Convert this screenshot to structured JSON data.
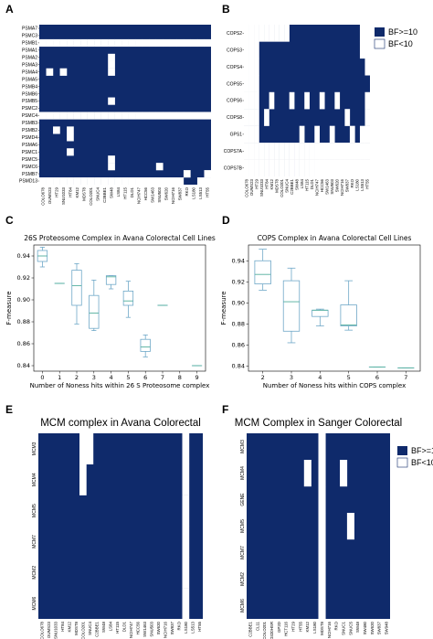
{
  "colors": {
    "hit": "#0f2a6b",
    "nohit": "#ffffff",
    "box": "#6fa8c8",
    "median": "#4fae9b"
  },
  "chart_data": [
    {
      "panel": "A",
      "type": "heatmap",
      "rows": [
        "PSMA7",
        "PSMC3",
        "PSMB1",
        "PSMA1",
        "PSMA2",
        "PSMA3",
        "PSMA4",
        "PSMA5",
        "PSMB4",
        "PSMB6",
        "PSMB5",
        "PSMC2",
        "PSMC4",
        "PSMB3",
        "PSMB2",
        "PSMD4",
        "PSMA6",
        "PSMC1",
        "PSMC5",
        "PSMC6",
        "PSMB7",
        "PSMD13"
      ],
      "cols": [
        "COLO678",
        "OUMS23",
        "HT29",
        "SNU1033",
        "HT84",
        "KM12",
        "MDST8",
        "COLO201",
        "SNUC4",
        "C2BBE1",
        "SW48",
        "LS84",
        "HT115",
        "DLD1",
        "NCIH747",
        "HCC56",
        "SW1463",
        "SNU503",
        "SW620",
        "NCIH716",
        "SW837",
        "RKO",
        "LS180",
        "LS513",
        "HT55"
      ],
      "off": [
        [],
        [],
        [
          0,
          1,
          2,
          3,
          4,
          5,
          6,
          7,
          8,
          9,
          10,
          11,
          12,
          13,
          14,
          15,
          16,
          17,
          18,
          19,
          20,
          21,
          22,
          23,
          24
        ],
        [],
        [
          10
        ],
        [
          10
        ],
        [
          1,
          3,
          10
        ],
        [],
        [],
        [],
        [
          10
        ],
        [],
        [
          0,
          1,
          2,
          3,
          4,
          5,
          6,
          7,
          8,
          9,
          10,
          11,
          12,
          13,
          14,
          15,
          16,
          17,
          18,
          19,
          20,
          21,
          22,
          23,
          24
        ],
        [],
        [
          2,
          4
        ],
        [
          4
        ],
        [],
        [
          4
        ],
        [
          10
        ],
        [
          10,
          17
        ],
        [
          21,
          24
        ],
        [
          0,
          1,
          2,
          3,
          4,
          5,
          6,
          7,
          8,
          9,
          10,
          11,
          12,
          13,
          14,
          15,
          16,
          17,
          18,
          19,
          20,
          23,
          24
        ]
      ]
    },
    {
      "panel": "B",
      "type": "heatmap",
      "rows": [
        "COPS2",
        "COPS3",
        "COPS4",
        "COPS5",
        "COPS6",
        "COPS8",
        "GPS1",
        "COPS7A",
        "COPS7B"
      ],
      "cols": [
        "COLO678",
        "OUMS23",
        "HT29",
        "SNU1033",
        "HT84",
        "KM12",
        "MDST8",
        "COLO201",
        "SNUC4",
        "C2BBE1",
        "SW48",
        "LS84",
        "HT115",
        "DLD1",
        "NCIH747",
        "HCC56",
        "SW1463",
        "SNU503",
        "SW620",
        "NCIH716",
        "SW837",
        "RKO",
        "LS180",
        "LS513",
        "HT55"
      ],
      "off": [
        [
          0,
          1,
          2,
          3,
          4,
          5,
          6,
          7,
          8,
          23,
          24
        ],
        [
          0,
          1,
          2,
          23,
          24
        ],
        [
          0,
          1,
          2,
          24
        ],
        [
          0,
          1,
          2
        ],
        [
          0,
          1,
          2,
          5,
          9,
          12,
          15,
          18,
          24
        ],
        [
          0,
          1,
          2,
          4,
          20,
          24
        ],
        [
          0,
          1,
          2,
          11,
          14,
          17,
          21,
          23,
          24
        ],
        [
          0,
          1,
          2,
          3,
          4,
          5,
          6,
          7,
          8,
          9,
          10,
          11,
          12,
          13,
          14,
          15,
          16,
          17,
          18,
          19,
          20,
          21,
          22,
          23,
          24
        ],
        [
          0,
          1,
          2,
          3,
          4,
          5,
          6,
          7,
          8,
          9,
          10,
          11,
          12,
          13,
          14,
          15,
          16,
          17,
          18,
          19,
          20,
          21,
          22,
          23,
          24
        ]
      ],
      "legend": [
        "BF>=10",
        "BF<10"
      ]
    },
    {
      "panel": "C",
      "type": "box",
      "title": "26S Proteosome Complex in Avana Colorectal Cell Lines",
      "xlabel": "Number of Noness hits within 26 S Proteosome complex",
      "ylabel": "F-measure",
      "categories": [
        "0",
        "1",
        "2",
        "3",
        "4",
        "5",
        "6",
        "7",
        "8",
        "9"
      ],
      "ylim": [
        0.835,
        0.95
      ],
      "yticks": [
        0.84,
        0.86,
        0.88,
        0.9,
        0.92,
        0.94
      ],
      "boxes": [
        {
          "x": 0,
          "whislo": 0.93,
          "q1": 0.935,
          "med": 0.94,
          "q3": 0.945,
          "whishi": 0.948
        },
        {
          "x": 1,
          "whislo": 0.915,
          "q1": 0.915,
          "med": 0.915,
          "q3": 0.915,
          "whishi": 0.915
        },
        {
          "x": 2,
          "whislo": 0.878,
          "q1": 0.895,
          "med": 0.913,
          "q3": 0.927,
          "whishi": 0.933
        },
        {
          "x": 3,
          "whislo": 0.872,
          "q1": 0.874,
          "med": 0.888,
          "q3": 0.904,
          "whishi": 0.918
        },
        {
          "x": 4,
          "whislo": 0.91,
          "q1": 0.914,
          "med": 0.921,
          "q3": 0.922,
          "whishi": 0.922
        },
        {
          "x": 5,
          "whislo": 0.884,
          "q1": 0.895,
          "med": 0.899,
          "q3": 0.908,
          "whishi": 0.917
        },
        {
          "x": 6,
          "whislo": 0.848,
          "q1": 0.853,
          "med": 0.857,
          "q3": 0.864,
          "whishi": 0.868
        },
        {
          "x": 7,
          "whislo": 0.895,
          "q1": 0.895,
          "med": 0.895,
          "q3": 0.895,
          "whishi": 0.895
        },
        {
          "x": 9,
          "whislo": 0.84,
          "q1": 0.84,
          "med": 0.84,
          "q3": 0.84,
          "whishi": 0.84
        }
      ]
    },
    {
      "panel": "D",
      "type": "box",
      "title": "COPS Complex in Avana Colorectal Cell Lines",
      "xlabel": "Number of Noness hits within COPS complex",
      "ylabel": "F-measure",
      "categories": [
        "2",
        "3",
        "4",
        "5",
        "6",
        "7"
      ],
      "ylim": [
        0.835,
        0.955
      ],
      "yticks": [
        0.84,
        0.86,
        0.88,
        0.9,
        0.92,
        0.94
      ],
      "boxes": [
        {
          "x": 2,
          "whislo": 0.912,
          "q1": 0.918,
          "med": 0.927,
          "q3": 0.94,
          "whishi": 0.951
        },
        {
          "x": 3,
          "whislo": 0.862,
          "q1": 0.873,
          "med": 0.901,
          "q3": 0.921,
          "whishi": 0.933
        },
        {
          "x": 4,
          "whislo": 0.878,
          "q1": 0.887,
          "med": 0.893,
          "q3": 0.893,
          "whishi": 0.894
        },
        {
          "x": 5,
          "whislo": 0.874,
          "q1": 0.878,
          "med": 0.879,
          "q3": 0.898,
          "whishi": 0.921
        },
        {
          "x": 6,
          "whislo": 0.839,
          "q1": 0.839,
          "med": 0.839,
          "q3": 0.839,
          "whishi": 0.839
        },
        {
          "x": 7,
          "whislo": 0.838,
          "q1": 0.838,
          "med": 0.838,
          "q3": 0.838,
          "whishi": 0.838
        }
      ]
    },
    {
      "panel": "E",
      "type": "heatmap",
      "title": "MCM complex in Avana Colorectal",
      "rows": [
        "MCM3",
        "MCM4",
        "MCM5",
        "MCM7",
        "MCM2",
        "MCM6"
      ],
      "cols": [
        "COLO678",
        "OUMS23",
        "SNU1033",
        "HT84",
        "KM12",
        "MDST8",
        "COLO201",
        "SNUC4",
        "C2BBE1",
        "SW48",
        "LS84",
        "HT115",
        "DLD1",
        "NCIH747",
        "HCC56",
        "SW1463",
        "SNU503",
        "SW620",
        "NCIH716",
        "SW837",
        "RKO",
        "LS180",
        "LS513",
        "HT55"
      ],
      "off": [
        [
          6,
          7,
          21
        ],
        [
          6,
          21
        ],
        [
          21
        ],
        [
          21
        ],
        [
          21
        ],
        [
          21
        ]
      ]
    },
    {
      "panel": "F",
      "type": "heatmap",
      "title": "MCM Complex in Sanger Colorectal",
      "rows": [
        "MCM3",
        "MCM4",
        "GENE",
        "MCM5",
        "MCM7",
        "MCM2",
        "MCM6"
      ],
      "cols": [
        "C2BBE1",
        "CL11",
        "COLO201",
        "COLO320HSR",
        "GP2D",
        "HCT116",
        "HT29",
        "HT55",
        "KM12",
        "LS180",
        "MDST8",
        "NCIH716",
        "RKO",
        "SNUC1",
        "SNUC5",
        "SW48",
        "SW480",
        "SW620",
        "SW837",
        "SW948"
      ],
      "off": [
        [
          10
        ],
        [
          8,
          10,
          13
        ],
        [
          10
        ],
        [
          10,
          14
        ],
        [
          10
        ],
        [
          10
        ],
        [
          10
        ]
      ],
      "legend": [
        "BF>=10",
        "BF<10"
      ]
    }
  ]
}
